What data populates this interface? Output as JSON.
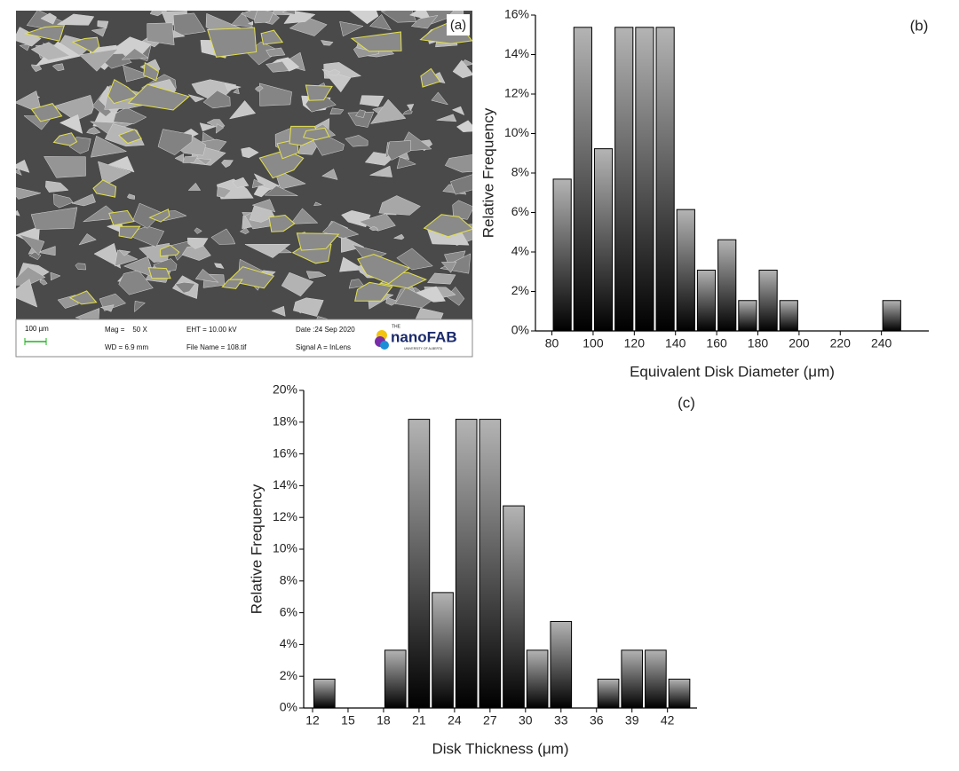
{
  "panel_a": {
    "label": "(a)",
    "scale_bar": "100 µm",
    "mag": "Mag =    50 X",
    "wd": "WD = 6.9 mm",
    "eht": "EHT = 10.00 kV",
    "file_name": "File Name = 108.tif",
    "date": "Date :24 Sep 2020",
    "signal": "Signal A = InLens",
    "logo_top": "THE",
    "logo": "nanoFAB",
    "logo_sub": "UNIVERSITY OF ALBERTA"
  },
  "chart_data": [
    {
      "type": "histogram",
      "panel_label": "(b)",
      "x_label": "Equivalent Disk Diameter (μm)",
      "y_label": "Relative Frequency",
      "bins": [
        80,
        90,
        100,
        110,
        120,
        130,
        140,
        150,
        160,
        170,
        180,
        190,
        200,
        210,
        220,
        230,
        240,
        250
      ],
      "values": [
        7.69,
        15.38,
        9.23,
        15.38,
        15.38,
        15.38,
        6.15,
        3.08,
        4.62,
        1.54,
        3.08,
        1.54,
        0,
        0,
        0,
        0,
        1.54
      ],
      "xlim": [
        72,
        263
      ],
      "ylim": [
        0,
        16
      ],
      "xticks": [
        80,
        100,
        120,
        140,
        160,
        180,
        200,
        220,
        240
      ],
      "yticks": [
        {
          "value": 0,
          "label": "0%"
        },
        {
          "value": 2,
          "label": "2%"
        },
        {
          "value": 4,
          "label": "4%"
        },
        {
          "value": 6,
          "label": "6%"
        },
        {
          "value": 8,
          "label": "8%"
        },
        {
          "value": 10,
          "label": "10%"
        },
        {
          "value": 12,
          "label": "12%"
        },
        {
          "value": 14,
          "label": "14%"
        },
        {
          "value": 16,
          "label": "16%"
        }
      ],
      "gradient": [
        "#b4b4b4",
        "#000000"
      ]
    },
    {
      "type": "histogram",
      "panel_label": "(c)",
      "x_label": "Disk Thickness (μm)",
      "y_label": "Relative Frequency",
      "bins": [
        12,
        14,
        16,
        18,
        20,
        22,
        24,
        26,
        28,
        30,
        32,
        34,
        36,
        38,
        40,
        42,
        44
      ],
      "values": [
        1.82,
        0,
        0,
        3.64,
        18.18,
        7.27,
        18.18,
        18.18,
        12.73,
        3.64,
        5.45,
        0,
        1.82,
        3.64,
        3.64,
        1.82
      ],
      "xlim": [
        11.25,
        44.5
      ],
      "ylim": [
        0,
        20
      ],
      "xticks": [
        12,
        15,
        18,
        21,
        24,
        27,
        30,
        33,
        36,
        39,
        42
      ],
      "yticks": [
        {
          "value": 0,
          "label": "0%"
        },
        {
          "value": 2,
          "label": "2%"
        },
        {
          "value": 4,
          "label": "4%"
        },
        {
          "value": 6,
          "label": "6%"
        },
        {
          "value": 8,
          "label": "8%"
        },
        {
          "value": 10,
          "label": "10%"
        },
        {
          "value": 12,
          "label": "12%"
        },
        {
          "value": 14,
          "label": "14%"
        },
        {
          "value": 16,
          "label": "16%"
        },
        {
          "value": 18,
          "label": "18%"
        },
        {
          "value": 20,
          "label": "20%"
        }
      ],
      "gradient": [
        "#b4b4b4",
        "#000000"
      ]
    }
  ]
}
